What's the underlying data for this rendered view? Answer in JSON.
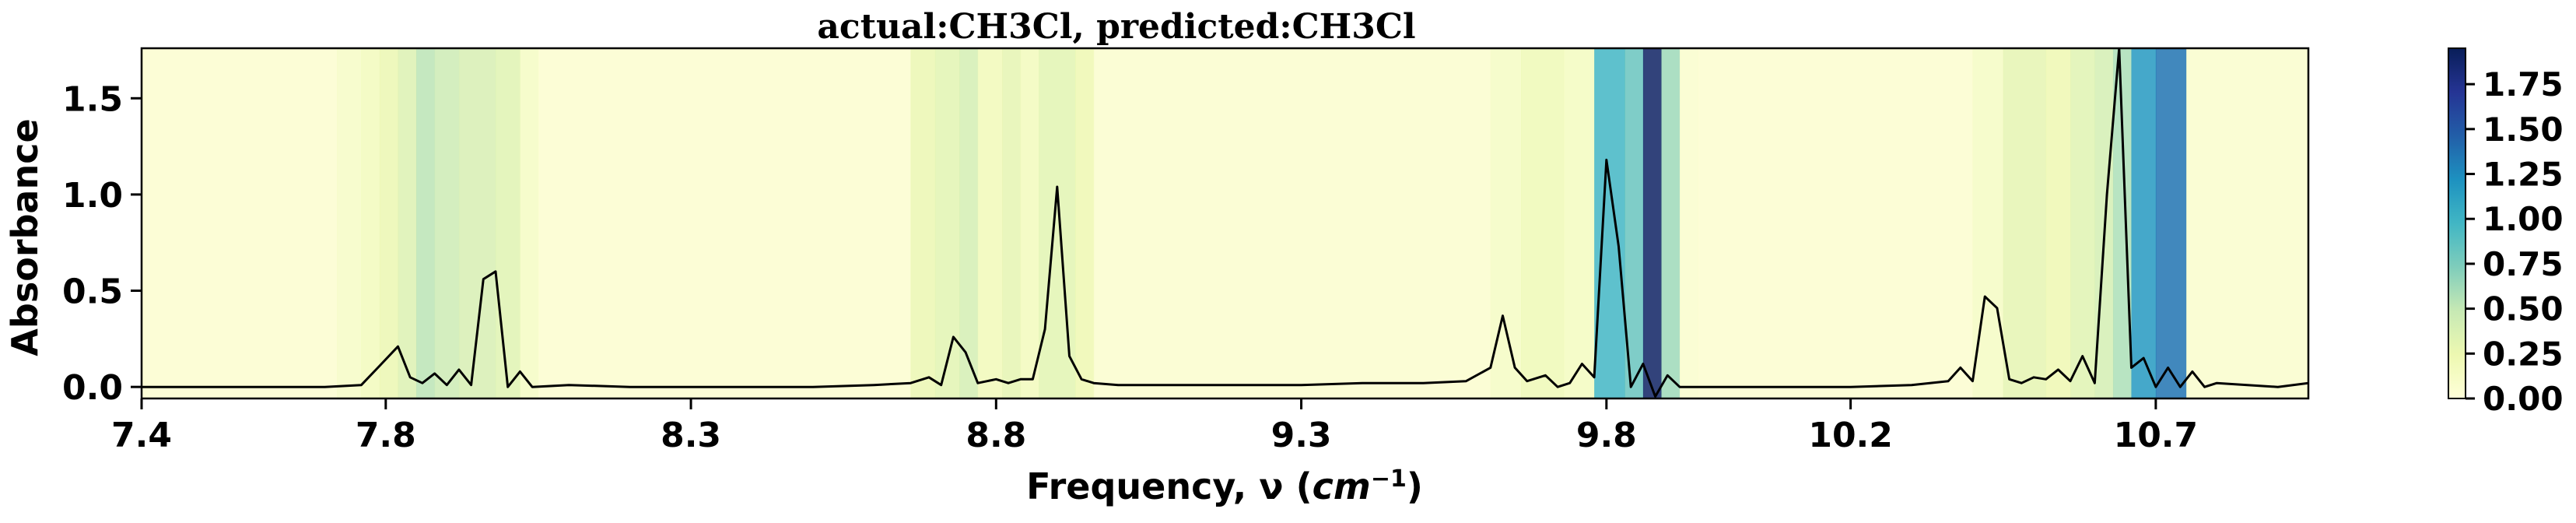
{
  "chart_data": {
    "type": "line",
    "title": "actual:CH3Cl, predicted:CH3Cl",
    "xlabel": "Frequency, ν (cm⁻¹)",
    "ylabel": "Absorbance",
    "xlim": [
      7.4,
      10.95
    ],
    "ylim": [
      -0.06,
      1.76
    ],
    "xticks": [
      7.4,
      7.8,
      8.3,
      8.8,
      9.3,
      9.8,
      10.2,
      10.7
    ],
    "xtick_labels": [
      "7.4",
      "7.8",
      "8.3",
      "8.8",
      "9.3",
      "9.8",
      "10.2",
      "10.7"
    ],
    "yticks": [
      0.0,
      0.5,
      1.0,
      1.5
    ],
    "ytick_labels": [
      "0.0",
      "0.5",
      "1.0",
      "1.5"
    ],
    "grid": false,
    "line_color": "#000000",
    "series": [
      {
        "values": [
          [
            7.4,
            0.0
          ],
          [
            7.5,
            0.0
          ],
          [
            7.6,
            0.0
          ],
          [
            7.7,
            0.0
          ],
          [
            7.76,
            0.01
          ],
          [
            7.79,
            0.11
          ],
          [
            7.82,
            0.21
          ],
          [
            7.84,
            0.05
          ],
          [
            7.86,
            0.02
          ],
          [
            7.88,
            0.07
          ],
          [
            7.9,
            0.01
          ],
          [
            7.92,
            0.09
          ],
          [
            7.94,
            0.01
          ],
          [
            7.96,
            0.56
          ],
          [
            7.98,
            0.6
          ],
          [
            8.0,
            0.0
          ],
          [
            8.02,
            0.08
          ],
          [
            8.04,
            0.0
          ],
          [
            8.1,
            0.01
          ],
          [
            8.2,
            0.0
          ],
          [
            8.3,
            0.0
          ],
          [
            8.4,
            0.0
          ],
          [
            8.5,
            0.0
          ],
          [
            8.6,
            0.01
          ],
          [
            8.66,
            0.02
          ],
          [
            8.69,
            0.05
          ],
          [
            8.71,
            0.01
          ],
          [
            8.73,
            0.26
          ],
          [
            8.75,
            0.18
          ],
          [
            8.77,
            0.02
          ],
          [
            8.8,
            0.04
          ],
          [
            8.82,
            0.02
          ],
          [
            8.84,
            0.04
          ],
          [
            8.86,
            0.04
          ],
          [
            8.88,
            0.3
          ],
          [
            8.9,
            1.04
          ],
          [
            8.92,
            0.16
          ],
          [
            8.94,
            0.04
          ],
          [
            8.96,
            0.02
          ],
          [
            9.0,
            0.01
          ],
          [
            9.1,
            0.01
          ],
          [
            9.2,
            0.01
          ],
          [
            9.3,
            0.01
          ],
          [
            9.4,
            0.02
          ],
          [
            9.5,
            0.02
          ],
          [
            9.57,
            0.03
          ],
          [
            9.61,
            0.1
          ],
          [
            9.63,
            0.37
          ],
          [
            9.65,
            0.1
          ],
          [
            9.67,
            0.03
          ],
          [
            9.7,
            0.06
          ],
          [
            9.72,
            0.0
          ],
          [
            9.74,
            0.02
          ],
          [
            9.76,
            0.12
          ],
          [
            9.78,
            0.05
          ],
          [
            9.8,
            1.18
          ],
          [
            9.82,
            0.73
          ],
          [
            9.84,
            0.0
          ],
          [
            9.86,
            0.12
          ],
          [
            9.88,
            -0.05
          ],
          [
            9.9,
            0.06
          ],
          [
            9.92,
            0.0
          ],
          [
            10.0,
            0.0
          ],
          [
            10.1,
            0.0
          ],
          [
            10.2,
            0.0
          ],
          [
            10.3,
            0.01
          ],
          [
            10.36,
            0.03
          ],
          [
            10.38,
            0.1
          ],
          [
            10.4,
            0.03
          ],
          [
            10.42,
            0.47
          ],
          [
            10.44,
            0.41
          ],
          [
            10.46,
            0.04
          ],
          [
            10.48,
            0.02
          ],
          [
            10.5,
            0.05
          ],
          [
            10.52,
            0.04
          ],
          [
            10.54,
            0.09
          ],
          [
            10.56,
            0.03
          ],
          [
            10.58,
            0.16
          ],
          [
            10.6,
            0.02
          ],
          [
            10.62,
            1.0
          ],
          [
            10.64,
            1.76
          ],
          [
            10.66,
            0.1
          ],
          [
            10.68,
            0.15
          ],
          [
            10.7,
            0.0
          ],
          [
            10.72,
            0.1
          ],
          [
            10.74,
            0.0
          ],
          [
            10.76,
            0.08
          ],
          [
            10.78,
            0.0
          ],
          [
            10.8,
            0.02
          ],
          [
            10.9,
            0.0
          ],
          [
            10.95,
            0.02
          ]
        ]
      }
    ],
    "heatmap_background": {
      "colormap": "YlGnBu",
      "value_range": [
        0,
        1.95
      ],
      "bands": [
        [
          7.4,
          7.72,
          0.02
        ],
        [
          7.72,
          7.76,
          0.08
        ],
        [
          7.76,
          7.79,
          0.14
        ],
        [
          7.79,
          7.82,
          0.22
        ],
        [
          7.82,
          7.85,
          0.32
        ],
        [
          7.85,
          7.88,
          0.5
        ],
        [
          7.88,
          7.92,
          0.42
        ],
        [
          7.92,
          7.98,
          0.35
        ],
        [
          7.98,
          8.02,
          0.3
        ],
        [
          8.02,
          8.05,
          0.1
        ],
        [
          8.05,
          8.66,
          0.02
        ],
        [
          8.66,
          8.7,
          0.22
        ],
        [
          8.7,
          8.74,
          0.28
        ],
        [
          8.74,
          8.77,
          0.38
        ],
        [
          8.77,
          8.81,
          0.16
        ],
        [
          8.81,
          8.84,
          0.26
        ],
        [
          8.84,
          8.87,
          0.14
        ],
        [
          8.87,
          8.93,
          0.28
        ],
        [
          8.93,
          8.96,
          0.2
        ],
        [
          8.96,
          9.61,
          0.03
        ],
        [
          9.61,
          9.66,
          0.1
        ],
        [
          9.66,
          9.73,
          0.18
        ],
        [
          9.73,
          9.78,
          0.12
        ],
        [
          9.78,
          9.83,
          0.95
        ],
        [
          9.83,
          9.86,
          0.8
        ],
        [
          9.86,
          9.89,
          1.9
        ],
        [
          9.89,
          9.92,
          0.6
        ],
        [
          9.92,
          9.95,
          0.04
        ],
        [
          9.95,
          10.4,
          0.02
        ],
        [
          10.4,
          10.45,
          0.1
        ],
        [
          10.45,
          10.52,
          0.26
        ],
        [
          10.52,
          10.56,
          0.2
        ],
        [
          10.56,
          10.6,
          0.3
        ],
        [
          10.6,
          10.63,
          0.38
        ],
        [
          10.63,
          10.66,
          0.55
        ],
        [
          10.66,
          10.7,
          1.15
        ],
        [
          10.7,
          10.75,
          1.35
        ],
        [
          10.75,
          10.95,
          0.04
        ]
      ]
    },
    "colorbar": {
      "ticks": [
        0.0,
        0.25,
        0.5,
        0.75,
        1.0,
        1.25,
        1.5,
        1.75
      ],
      "tick_labels": [
        "0.00",
        "0.25",
        "0.50",
        "0.75",
        "1.00",
        "1.25",
        "1.50",
        "1.75"
      ],
      "range": [
        0,
        1.95
      ]
    }
  }
}
